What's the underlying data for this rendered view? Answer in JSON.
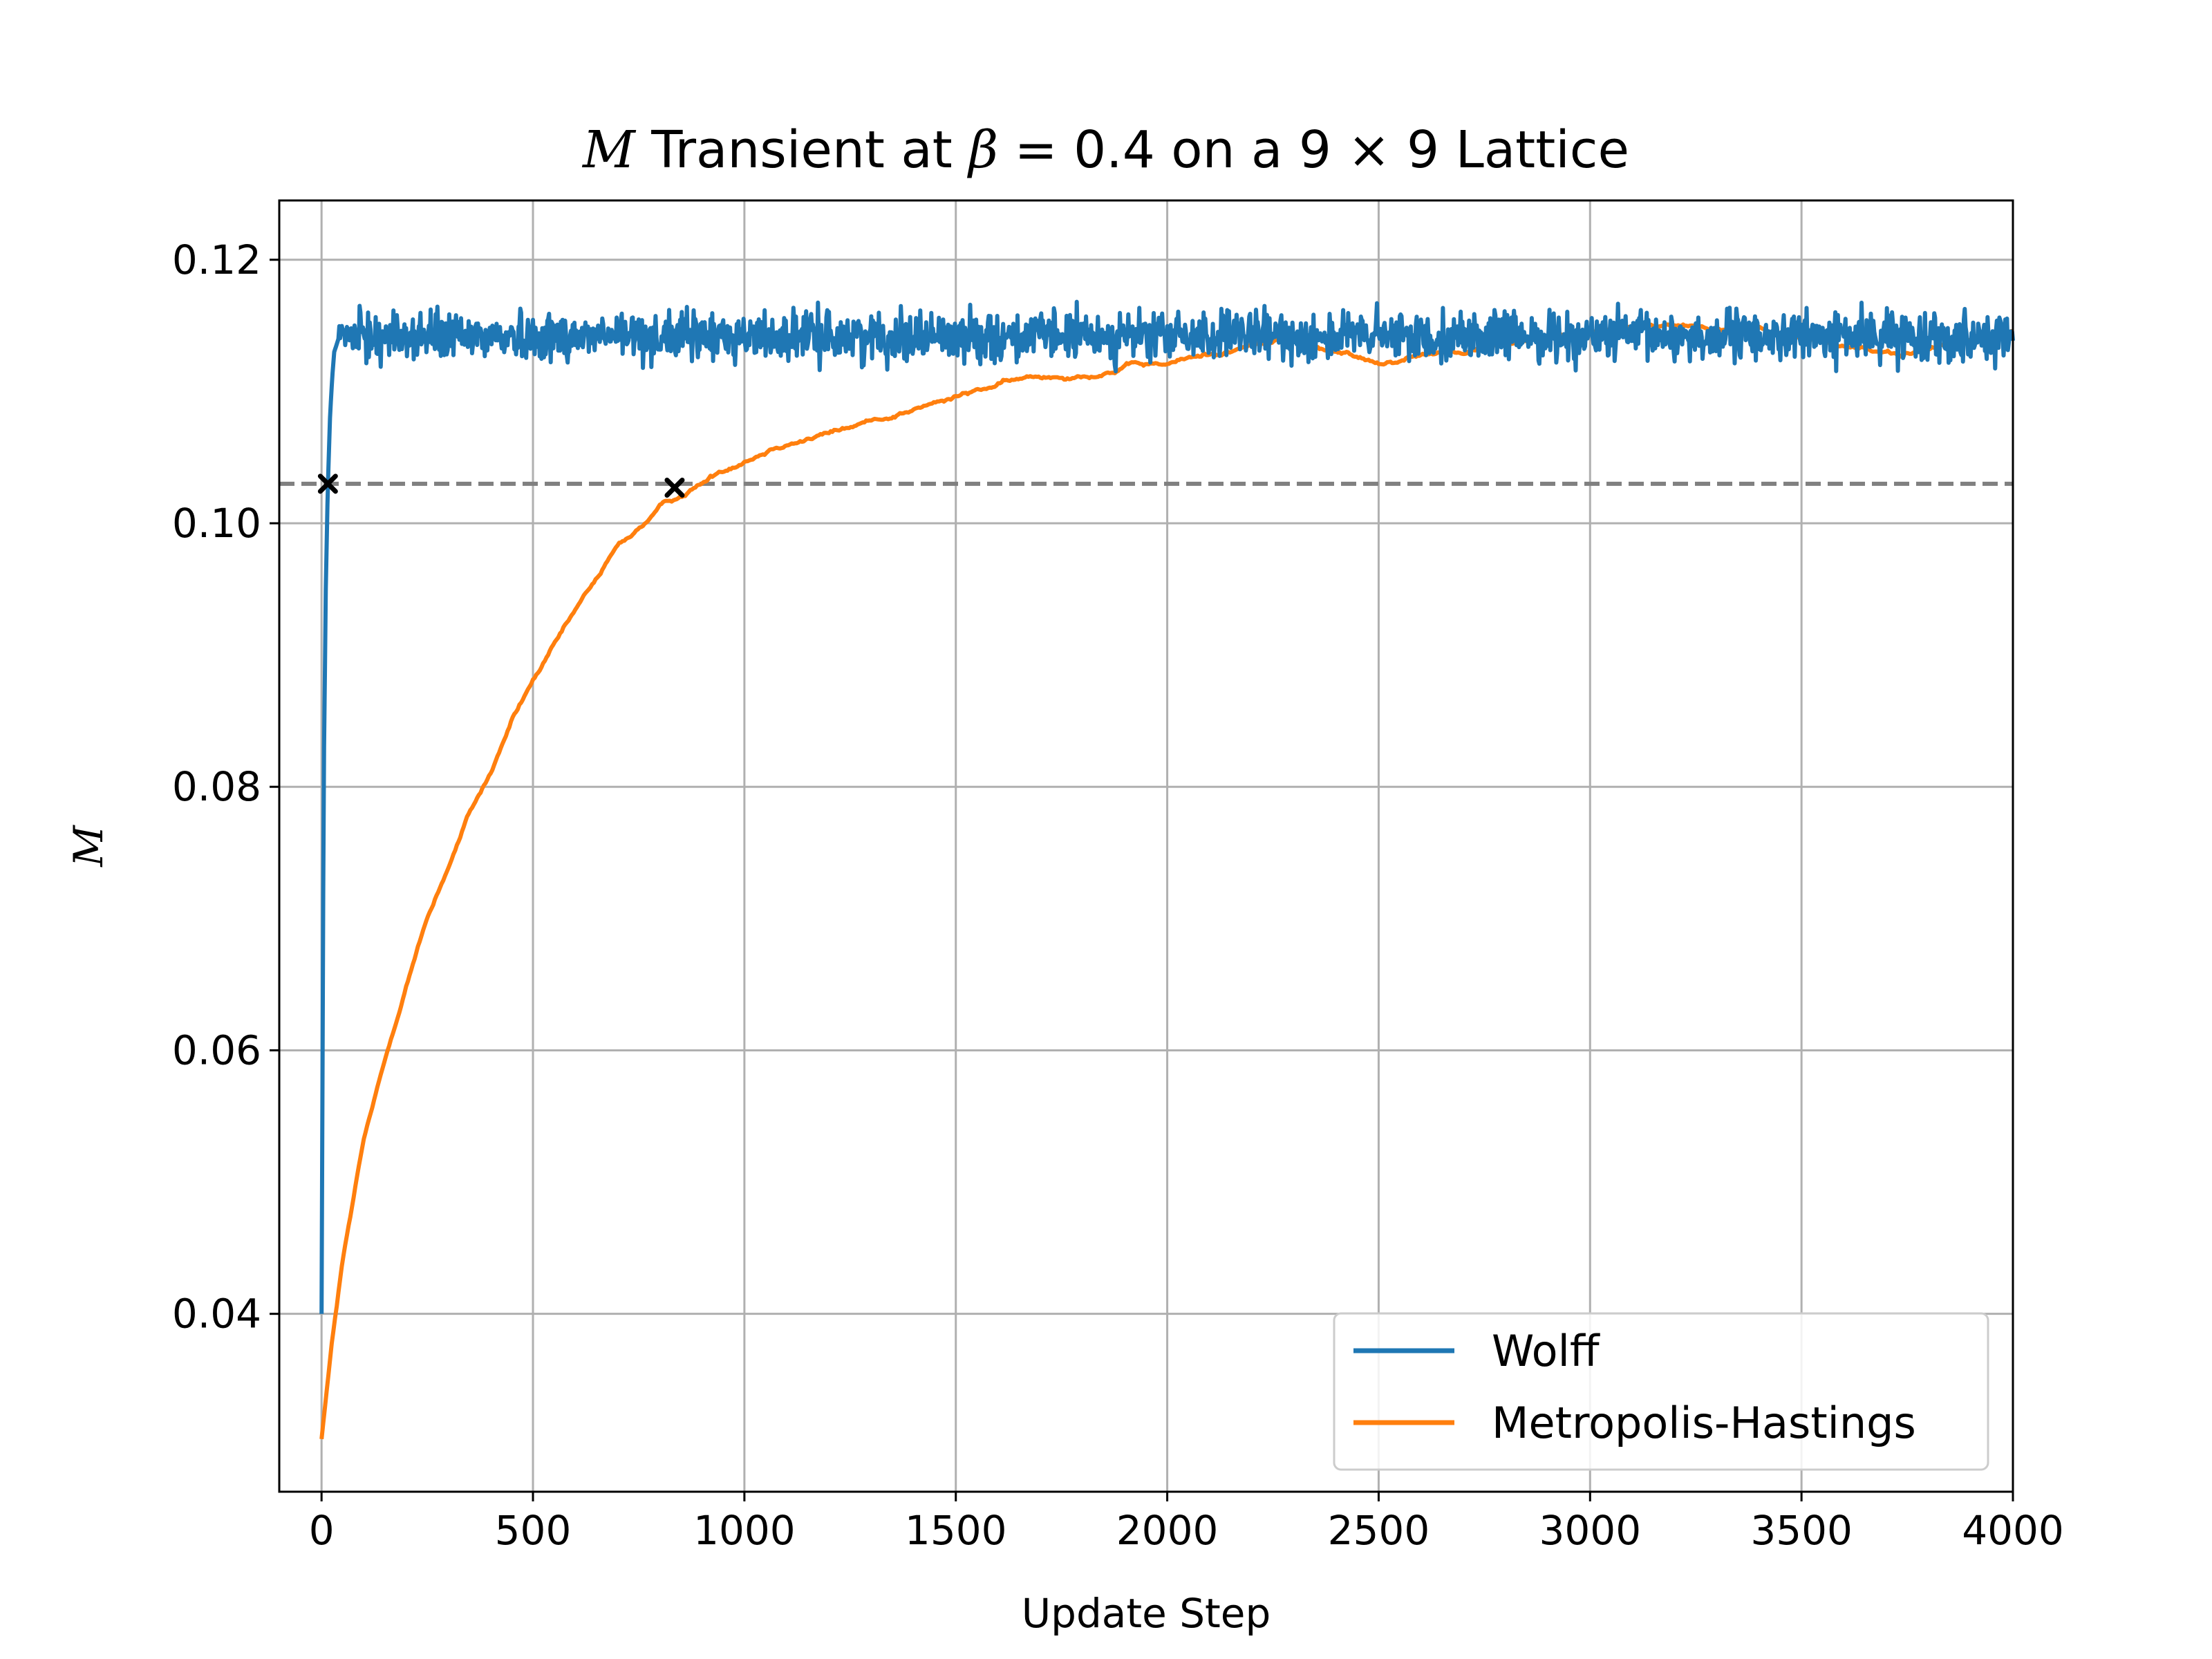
{
  "chart_data": {
    "type": "line",
    "title": {
      "prefix_symbol": "M",
      "part1": " Transient at ",
      "beta_symbol": "β",
      "part2": " = 0.4 on a 9 × 9 Lattice"
    },
    "xlabel": "Update Step",
    "ylabel": "M",
    "xlim": [
      -100,
      4000
    ],
    "ylim": [
      0.0265,
      0.1245
    ],
    "xticks": [
      0,
      500,
      1000,
      1500,
      2000,
      2500,
      3000,
      3500,
      4000
    ],
    "yticks": [
      0.04,
      0.06,
      0.08,
      0.1,
      0.12
    ],
    "grid": true,
    "legend_position": "lower-right",
    "reference_line": {
      "y": 0.103,
      "style": "dashed",
      "color": "#808080"
    },
    "series": [
      {
        "name": "Wolff",
        "color": "#1f77b4",
        "equilibrium_mean": 0.1142,
        "noise_amplitude": 0.0018,
        "x": [
          0,
          5,
          10,
          15,
          20,
          25,
          30,
          40,
          60,
          100,
          200,
          400,
          800,
          1200,
          1600,
          2000,
          2400,
          2800,
          3200,
          3600,
          4000
        ],
        "y": [
          0.04,
          0.08,
          0.095,
          0.103,
          0.108,
          0.111,
          0.113,
          0.114,
          0.1145,
          0.1142,
          0.1143,
          0.1141,
          0.1142,
          0.1138,
          0.114,
          0.1143,
          0.1142,
          0.1141,
          0.1143,
          0.1142,
          0.114
        ]
      },
      {
        "name": "Metropolis-Hastings",
        "color": "#ff7f0e",
        "x": [
          0,
          25,
          50,
          100,
          150,
          200,
          250,
          300,
          350,
          400,
          450,
          500,
          600,
          700,
          800,
          900,
          1000,
          1100,
          1200,
          1300,
          1400,
          1500,
          1600,
          1700,
          1800,
          1900,
          2000,
          2100,
          2200,
          2300,
          2400,
          2500,
          2600,
          2700,
          2800,
          2900,
          3000,
          3100,
          3200,
          3300,
          3400,
          3500,
          3600,
          3700,
          3800,
          3900,
          4000
        ],
        "y": [
          0.0305,
          0.038,
          0.044,
          0.053,
          0.059,
          0.065,
          0.07,
          0.074,
          0.078,
          0.081,
          0.085,
          0.088,
          0.093,
          0.098,
          0.101,
          0.103,
          0.105,
          0.1065,
          0.107,
          0.1078,
          0.1088,
          0.1095,
          0.1105,
          0.111,
          0.1115,
          0.112,
          0.112,
          0.1128,
          0.1135,
          0.114,
          0.1128,
          0.1122,
          0.113,
          0.1135,
          0.1138,
          0.114,
          0.1145,
          0.1152,
          0.115,
          0.115,
          0.1148,
          0.114,
          0.1135,
          0.1128,
          0.113,
          0.114,
          0.1145
        ]
      }
    ],
    "markers": [
      {
        "x": 15,
        "y": 0.103,
        "symbol": "x",
        "label": ""
      },
      {
        "x": 835,
        "y": 0.1027,
        "symbol": "x",
        "label": ""
      }
    ]
  }
}
